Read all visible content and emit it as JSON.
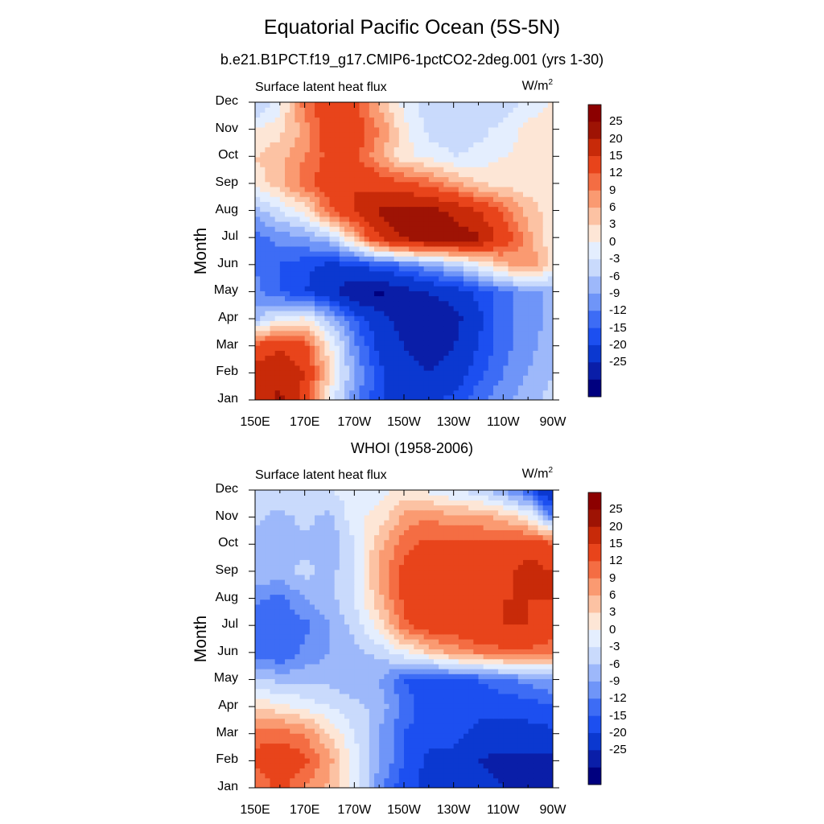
{
  "title": "Equatorial Pacific Ocean (5S-5N)",
  "chart_data": [
    {
      "type": "heatmap",
      "title": "b.e21.B1PCT.f19_g17.CMIP6-1pctCO2-2deg.001 (yrs 1-30)",
      "left_label": "Surface latent heat flux",
      "right_label": "W/m",
      "right_label_sup": "2",
      "ylabel": "Month",
      "xlabel": "",
      "x_ticks": [
        "150E",
        "170E",
        "170W",
        "150W",
        "130W",
        "110W",
        "90W"
      ],
      "x_range": [
        150,
        270
      ],
      "y_ticks": [
        "Jan",
        "Feb",
        "Mar",
        "Apr",
        "May",
        "Jun",
        "Jul",
        "Aug",
        "Sep",
        "Oct",
        "Nov",
        "Dec"
      ],
      "y_range": [
        1,
        12
      ],
      "contour_levels": [
        -25,
        -20,
        -15,
        -12,
        -9,
        -6,
        -3,
        0,
        3,
        6,
        9,
        12,
        15,
        20,
        25
      ],
      "x_grid": [
        150,
        160,
        170,
        180,
        190,
        200,
        210,
        220,
        230,
        240,
        250,
        260,
        270
      ],
      "z": [
        [
          22,
          26,
          18,
          2,
          -8,
          -14,
          -18,
          -16,
          -14,
          -10,
          -7,
          -4,
          -2
        ],
        [
          22,
          24,
          20,
          6,
          -6,
          -14,
          -18,
          -20,
          -18,
          -13,
          -9,
          -6,
          -3
        ],
        [
          16,
          20,
          16,
          4,
          -8,
          -16,
          -20,
          -22,
          -20,
          -15,
          -10,
          -7,
          -4
        ],
        [
          -4,
          2,
          4,
          -4,
          -12,
          -18,
          -22,
          -22,
          -22,
          -16,
          -10,
          -8,
          -5
        ],
        [
          -8,
          -12,
          -15,
          -18,
          -24,
          -26,
          -22,
          -20,
          -18,
          -14,
          -10,
          -7,
          -5
        ],
        [
          -9,
          -12,
          -14,
          -16,
          -15,
          -12,
          -10,
          -6,
          -3,
          2,
          8,
          12,
          4
        ],
        [
          -10,
          -8,
          -6,
          -3,
          8,
          20,
          26,
          28,
          27,
          26,
          18,
          10,
          4
        ],
        [
          -5,
          0,
          4,
          14,
          20,
          26,
          28,
          27,
          24,
          20,
          14,
          8,
          4
        ],
        [
          4,
          8,
          14,
          18,
          20,
          18,
          16,
          14,
          10,
          6,
          5,
          4,
          3
        ],
        [
          6,
          8,
          12,
          16,
          16,
          10,
          4,
          2,
          0,
          1,
          3,
          4,
          6
        ],
        [
          3,
          5,
          10,
          18,
          18,
          12,
          4,
          -1,
          -2,
          -1,
          1,
          4,
          6
        ],
        [
          -4,
          2,
          14,
          18,
          16,
          8,
          2,
          -2,
          -2,
          -3,
          -2,
          1,
          3
        ]
      ],
      "colorbar_labels": [
        "25",
        "20",
        "15",
        "12",
        "9",
        "6",
        "3",
        "0",
        "-3",
        "-6",
        "-9",
        "-12",
        "-15",
        "-20",
        "-25"
      ]
    },
    {
      "type": "heatmap",
      "title": "WHOI (1958-2006)",
      "left_label": "Surface latent heat flux",
      "right_label": "W/m",
      "right_label_sup": "2",
      "ylabel": "Month",
      "xlabel": "",
      "x_ticks": [
        "150E",
        "170E",
        "170W",
        "150W",
        "130W",
        "110W",
        "90W"
      ],
      "x_range": [
        150,
        270
      ],
      "y_ticks": [
        "Jan",
        "Feb",
        "Mar",
        "Apr",
        "May",
        "Jun",
        "Jul",
        "Aug",
        "Sep",
        "Oct",
        "Nov",
        "Dec"
      ],
      "y_range": [
        1,
        12
      ],
      "contour_levels": [
        -25,
        -20,
        -15,
        -12,
        -9,
        -6,
        -3,
        0,
        3,
        6,
        9,
        12,
        15,
        20,
        25
      ],
      "x_grid": [
        150,
        160,
        170,
        180,
        190,
        200,
        210,
        220,
        230,
        240,
        250,
        260,
        270
      ],
      "z": [
        [
          12,
          16,
          12,
          8,
          2,
          -8,
          -14,
          -16,
          -16,
          -18,
          -20,
          -22,
          -25
        ],
        [
          16,
          18,
          16,
          10,
          2,
          -6,
          -12,
          -16,
          -16,
          -20,
          -22,
          -22,
          -22
        ],
        [
          14,
          14,
          12,
          6,
          0,
          -6,
          -12,
          -14,
          -14,
          -16,
          -16,
          -16,
          -16
        ],
        [
          6,
          4,
          2,
          0,
          -2,
          -4,
          -10,
          -14,
          -14,
          -14,
          -14,
          -14,
          -12
        ],
        [
          -2,
          -4,
          -4,
          -4,
          -6,
          -6,
          -12,
          -14,
          -12,
          -12,
          -10,
          -8,
          -6
        ],
        [
          -10,
          -12,
          -8,
          -6,
          -4,
          -2,
          2,
          6,
          10,
          12,
          14,
          14,
          12
        ],
        [
          -12,
          -12,
          -10,
          -6,
          -2,
          4,
          14,
          18,
          18,
          20,
          20,
          20,
          18
        ],
        [
          -8,
          -10,
          -6,
          -4,
          0,
          8,
          16,
          20,
          20,
          18,
          20,
          20,
          20
        ],
        [
          -4,
          -4,
          -2,
          -4,
          0,
          10,
          16,
          18,
          18,
          16,
          18,
          22,
          20
        ],
        [
          -6,
          -4,
          -4,
          -6,
          0,
          8,
          14,
          16,
          16,
          16,
          16,
          18,
          16
        ],
        [
          -2,
          -4,
          -2,
          -4,
          2,
          4,
          10,
          12,
          10,
          10,
          8,
          4,
          -8
        ],
        [
          -2,
          -1,
          0,
          0,
          1,
          2,
          4,
          2,
          0,
          -2,
          -6,
          -12,
          -22
        ]
      ],
      "colorbar_labels": [
        "25",
        "20",
        "15",
        "12",
        "9",
        "6",
        "3",
        "0",
        "-3",
        "-6",
        "-9",
        "-12",
        "-15",
        "-20",
        "-25"
      ]
    }
  ],
  "colors": {
    "palette": [
      "#00007f",
      "#0a1ea8",
      "#0b38d0",
      "#1c4ff0",
      "#3d6cf5",
      "#6f95f8",
      "#9db8fa",
      "#c9dafc",
      "#e4eefe",
      "#fde6d6",
      "#fcc2a3",
      "#fa9a71",
      "#f46d43",
      "#e8441b",
      "#c82a09",
      "#9e1304",
      "#8c0000"
    ]
  }
}
